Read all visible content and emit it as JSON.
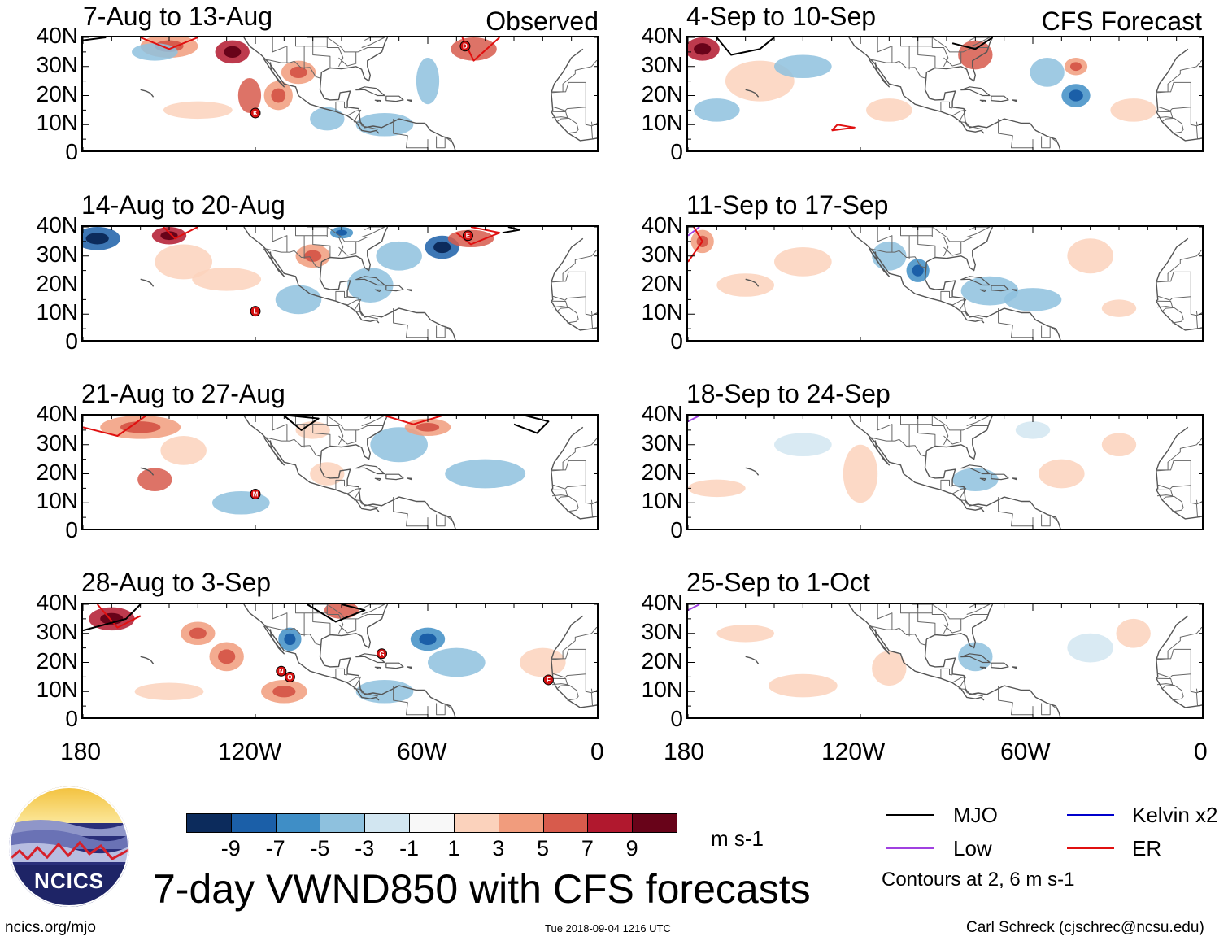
{
  "header": {
    "observed_label": "Observed",
    "forecast_label": "CFS Forecast"
  },
  "panels": [
    {
      "label": "7-Aug to 13-Aug",
      "column": "observed"
    },
    {
      "label": "14-Aug to 20-Aug",
      "column": "observed"
    },
    {
      "label": "21-Aug to 27-Aug",
      "column": "observed"
    },
    {
      "label": "28-Aug to 3-Sep",
      "column": "observed"
    },
    {
      "label": "4-Sep to 10-Sep",
      "column": "forecast"
    },
    {
      "label": "11-Sep to 17-Sep",
      "column": "forecast"
    },
    {
      "label": "18-Sep to 24-Sep",
      "column": "forecast"
    },
    {
      "label": "25-Sep to 1-Oct",
      "column": "forecast"
    }
  ],
  "axes": {
    "y_ticks": [
      "40N",
      "30N",
      "20N",
      "10N",
      "0"
    ],
    "x_ticks": [
      "180",
      "120W",
      "60W",
      "0"
    ]
  },
  "storms": [
    {
      "letter": "D",
      "panel": 0
    },
    {
      "letter": "K",
      "panel": 0
    },
    {
      "letter": "E",
      "panel": 1
    },
    {
      "letter": "L",
      "panel": 1
    },
    {
      "letter": "M",
      "panel": 2
    },
    {
      "letter": "N",
      "panel": 3
    },
    {
      "letter": "O",
      "panel": 3
    },
    {
      "letter": "G",
      "panel": 3
    },
    {
      "letter": "F",
      "panel": 3
    }
  ],
  "colorbar": {
    "labels": [
      "-9",
      "-7",
      "-5",
      "-3",
      "-1",
      "1",
      "3",
      "5",
      "7",
      "9"
    ],
    "colors": [
      "#0c2b5c",
      "#1b5fa8",
      "#3f8ec6",
      "#8ec1de",
      "#d2e6f1",
      "#f8f8f8",
      "#fbd2bc",
      "#f19c7d",
      "#d75b4c",
      "#b1182e",
      "#680319"
    ],
    "units": "m s-1"
  },
  "legend": {
    "items": [
      {
        "label": "MJO",
        "color": "#000000"
      },
      {
        "label": "Kelvin x2",
        "color": "#0000cc"
      },
      {
        "label": "Low",
        "color": "#a040e0"
      },
      {
        "label": "ER",
        "color": "#e01010"
      }
    ],
    "contours_note": "Contours at 2, 6 m s-1"
  },
  "footer": {
    "main_title": "7-day VWND850 with CFS forecasts",
    "left_url": "ncics.org/mjo",
    "timestamp": "Tue 2018-09-04 1216 UTC",
    "credit": "Carl Schreck (cjschrec@ncsu.edu)",
    "logo_text": "NCICS"
  }
}
